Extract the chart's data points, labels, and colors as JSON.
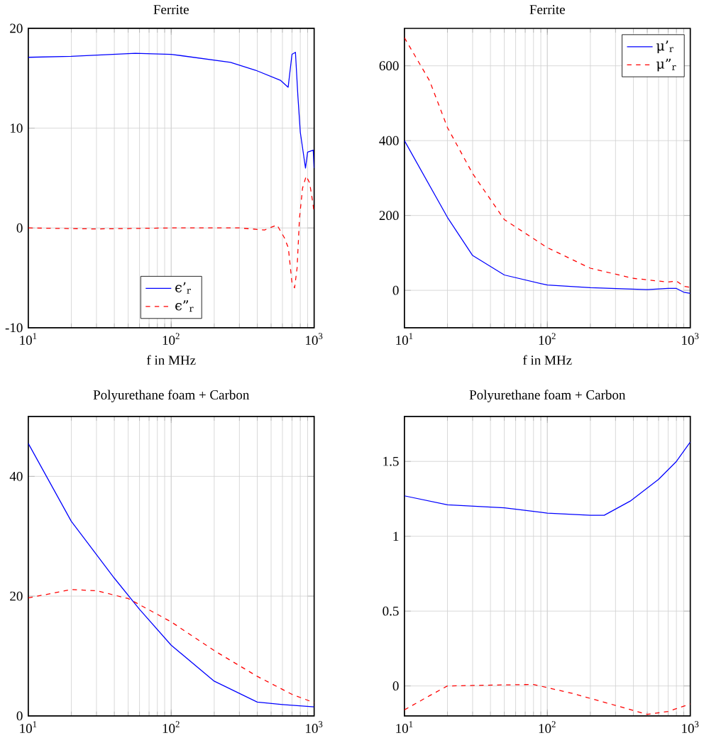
{
  "chart_data": [
    {
      "type": "line",
      "title": "Ferrite",
      "xlabel": "f in MHz",
      "log": "x",
      "grid": true,
      "legend": "bottom",
      "xlim": [
        10,
        1000
      ],
      "ylim": [
        -10,
        20
      ],
      "xticks": [
        {
          "value": 10,
          "label": "10$^{1}$"
        },
        {
          "value": 100,
          "label": "10$^{2}$"
        },
        {
          "value": 1000,
          "label": "10$^{3}$"
        }
      ],
      "yticks": [
        -10,
        0,
        10,
        20
      ],
      "series": [
        {
          "name": "ϵ’$_{r}$",
          "color": "#0000ff",
          "line_style": "solid",
          "x": [
            10,
            20,
            56,
            100,
            260,
            390,
            580,
            658,
            700,
            740,
            770,
            800,
            870,
            900,
            985,
            1000
          ],
          "values": [
            17.1,
            17.2,
            17.5,
            17.4,
            16.6,
            15.8,
            14.8,
            14.1,
            17.4,
            17.6,
            13.2,
            9.6,
            6,
            7.6,
            7.8,
            6
          ]
        },
        {
          "name": "ϵ”$_{r}$",
          "color": "#ff0000",
          "line_style": "dashed",
          "x": [
            10,
            30,
            100,
            300,
            450,
            550,
            620,
            660,
            700,
            730,
            760,
            790,
            830,
            880,
            930,
            980,
            1000
          ],
          "values": [
            0,
            -0.1,
            0,
            0,
            -0.2,
            0.3,
            -1,
            -2,
            -5.5,
            -6,
            -4,
            1,
            4,
            5.2,
            4.5,
            2.5,
            1.5
          ]
        }
      ]
    },
    {
      "type": "line",
      "title": "Ferrite",
      "xlabel": "f in MHz",
      "log": "x",
      "grid": true,
      "legend": "top right",
      "xlim": [
        10,
        1000
      ],
      "ylim": [
        -100,
        700
      ],
      "xticks": [
        {
          "value": 10,
          "label": "10$^{1}$"
        },
        {
          "value": 100,
          "label": "10$^{2}$"
        },
        {
          "value": 1000,
          "label": "10$^{3}$"
        }
      ],
      "yticks": [
        0,
        200,
        400,
        600
      ],
      "series": [
        {
          "name": "μ’$_{r}$",
          "color": "#0000ff",
          "line_style": "solid",
          "x": [
            10,
            20,
            30,
            50,
            100,
            200,
            500,
            700,
            800,
            900,
            1000
          ],
          "values": [
            400,
            195,
            93,
            41,
            14,
            7,
            2,
            5,
            5,
            -5,
            -8
          ]
        },
        {
          "name": "μ”$_{r}$",
          "color": "#ff0000",
          "line_style": "dashed",
          "x": [
            10,
            15,
            20,
            30,
            50,
            100,
            200,
            400,
            700,
            800,
            900,
            1000
          ],
          "values": [
            675,
            560,
            435,
            312,
            189,
            114,
            59,
            32,
            22,
            25,
            11,
            8
          ]
        }
      ]
    },
    {
      "type": "line",
      "title": "Polyurethane foam + Carbon",
      "log": "x",
      "grid": true,
      "xlim": [
        10,
        1000
      ],
      "ylim": [
        0,
        50
      ],
      "xticks": [
        {
          "value": 10,
          "label": "10$^{1}$"
        },
        {
          "value": 100,
          "label": "10$^{2}$"
        },
        {
          "value": 1000,
          "label": "10$^{3}$"
        }
      ],
      "yticks": [
        0,
        20,
        40
      ],
      "series": [
        {
          "color": "#0000ff",
          "line_style": "solid",
          "x": [
            10,
            20,
            40,
            60,
            100,
            200,
            400,
            600,
            1000
          ],
          "values": [
            45.5,
            32.5,
            23,
            17.8,
            11.8,
            5.8,
            2.3,
            1.9,
            1.5
          ]
        },
        {
          "color": "#ff0000",
          "line_style": "dashed",
          "x": [
            10,
            20,
            30,
            50,
            100,
            200,
            400,
            700,
            1000
          ],
          "values": [
            19.7,
            21.1,
            20.9,
            19.6,
            15.7,
            10.9,
            6.6,
            3.6,
            2.2
          ]
        }
      ]
    },
    {
      "type": "line",
      "title": "Polyurethane foam + Carbon",
      "log": "x",
      "grid": true,
      "xlim": [
        10,
        1000
      ],
      "ylim": [
        -0.2,
        1.8
      ],
      "xticks": [
        {
          "value": 10,
          "label": "10$^{1}$"
        },
        {
          "value": 100,
          "label": "10$^{2}$"
        },
        {
          "value": 1000,
          "label": "10$^{3}$"
        }
      ],
      "yticks": [
        0,
        0.5,
        1,
        1.5
      ],
      "series": [
        {
          "color": "#0000ff",
          "line_style": "solid",
          "x": [
            10,
            20,
            50,
            100,
            200,
            250,
            380,
            600,
            800,
            1000
          ],
          "values": [
            1.27,
            1.21,
            1.19,
            1.155,
            1.14,
            1.14,
            1.235,
            1.38,
            1.5,
            1.63
          ]
        },
        {
          "color": "#ff0000",
          "line_style": "dashed",
          "x": [
            10,
            15,
            20,
            50,
            80,
            150,
            300,
            500,
            700,
            1000
          ],
          "values": [
            -0.16,
            -0.065,
            0,
            0.007,
            0.01,
            -0.05,
            -0.13,
            -0.19,
            -0.17,
            -0.12
          ]
        }
      ]
    }
  ]
}
